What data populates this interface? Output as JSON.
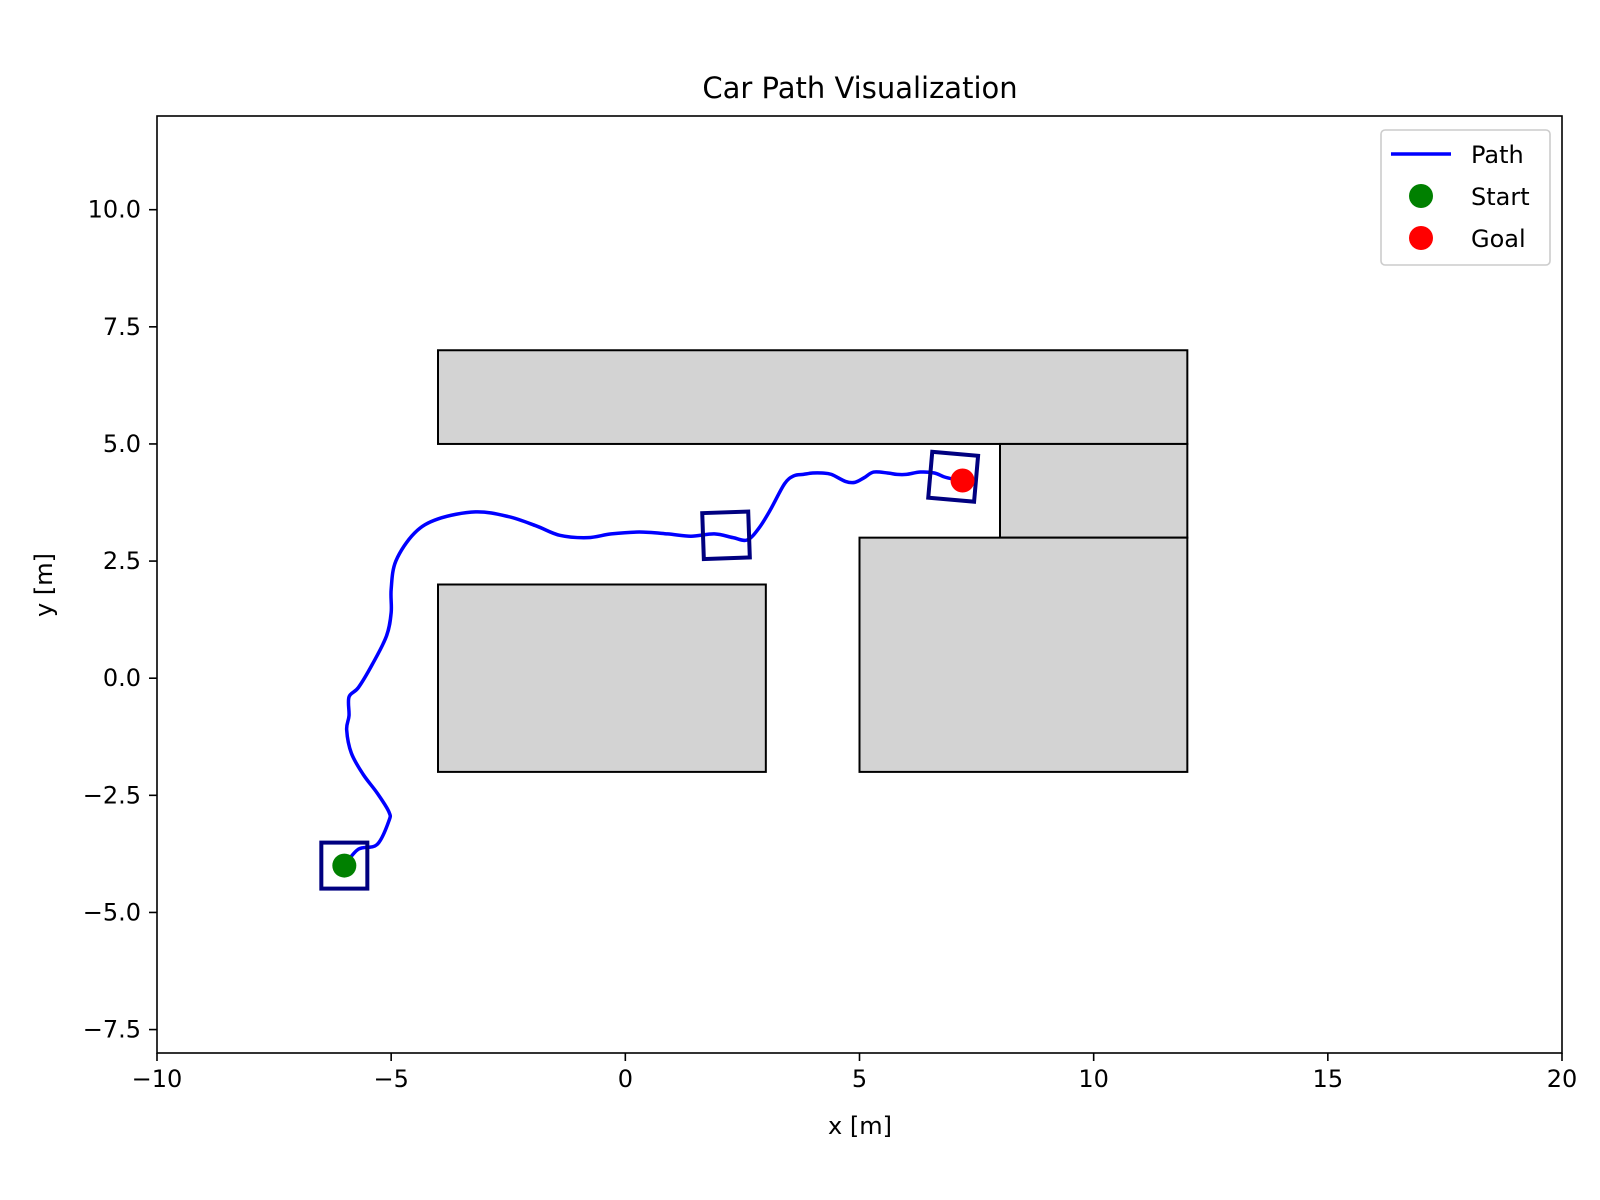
{
  "chart_data": {
    "type": "line",
    "title": "Car Path Visualization",
    "xlabel": "x [m]",
    "ylabel": "y [m]",
    "xlim": [
      -10,
      20
    ],
    "ylim": [
      -8,
      12
    ],
    "xticks": [
      -10,
      -5,
      0,
      5,
      10,
      15,
      20
    ],
    "xtick_labels": [
      "−10",
      "−5",
      "0",
      "5",
      "10",
      "15",
      "20"
    ],
    "yticks": [
      -7.5,
      -5.0,
      -2.5,
      0.0,
      2.5,
      5.0,
      7.5,
      10.0
    ],
    "ytick_labels": [
      "−7.5",
      "−5.0",
      "−2.5",
      "0.0",
      "2.5",
      "5.0",
      "7.5",
      "10.0"
    ],
    "grid": false,
    "legend": {
      "placement": "top-right",
      "entries": [
        {
          "label": "Path",
          "marker": "line",
          "color": "#0000ff"
        },
        {
          "label": "Start",
          "marker": "circle",
          "color": "#008000"
        },
        {
          "label": "Goal",
          "marker": "circle",
          "color": "#ff0000"
        }
      ]
    },
    "obstacles": [
      {
        "x0": -4,
        "y0": 5,
        "x1": 12,
        "y1": 7
      },
      {
        "x0": 8,
        "y0": 3,
        "x1": 12,
        "y1": 5
      },
      {
        "x0": 5,
        "y0": -2,
        "x1": 12,
        "y1": 3
      },
      {
        "x0": -4,
        "y0": -2,
        "x1": 3,
        "y1": 2
      }
    ],
    "obstacle_fill": "#d3d3d3",
    "series": [
      {
        "name": "Path",
        "color": "#0000ff",
        "x": [
          -6.0,
          -5.7,
          -5.3,
          -5.05,
          -5.05,
          -5.3,
          -5.6,
          -5.85,
          -5.95,
          -5.9,
          -5.9,
          -5.7,
          -5.4,
          -5.1,
          -5.0,
          -5.0,
          -4.9,
          -4.5,
          -4.0,
          -3.2,
          -2.5,
          -1.9,
          -1.4,
          -0.8,
          -0.3,
          0.3,
          0.9,
          1.4,
          1.9,
          2.3,
          2.6,
          2.85,
          3.1,
          3.4,
          3.6,
          3.8,
          4.0,
          4.2,
          4.4,
          4.7,
          4.9,
          5.1,
          5.3,
          5.6,
          5.8,
          6.0,
          6.3,
          6.6,
          6.8,
          7.0,
          7.2
        ],
        "y": [
          -4.0,
          -3.65,
          -3.55,
          -3.05,
          -2.85,
          -2.45,
          -2.05,
          -1.6,
          -1.1,
          -0.8,
          -0.4,
          -0.2,
          0.3,
          0.9,
          1.4,
          1.9,
          2.5,
          3.1,
          3.4,
          3.55,
          3.45,
          3.25,
          3.05,
          3.0,
          3.08,
          3.12,
          3.08,
          3.03,
          3.08,
          3.0,
          2.95,
          3.2,
          3.6,
          4.15,
          4.32,
          4.35,
          4.38,
          4.38,
          4.35,
          4.2,
          4.18,
          4.28,
          4.4,
          4.38,
          4.35,
          4.35,
          4.4,
          4.38,
          4.3,
          4.25,
          4.22
        ]
      }
    ],
    "start": {
      "x": -6,
      "y": -4,
      "label": "Start",
      "color": "#008000"
    },
    "goal": {
      "x": 7.2,
      "y": 4.22,
      "label": "Goal",
      "color": "#ff0000"
    },
    "car_poses": [
      {
        "x": -6.0,
        "y": -4.0,
        "heading_deg": 0
      },
      {
        "x": 2.15,
        "y": 3.05,
        "heading_deg": 2
      },
      {
        "x": 7.0,
        "y": 4.3,
        "heading_deg": -5
      }
    ],
    "car_color": "#000080"
  }
}
